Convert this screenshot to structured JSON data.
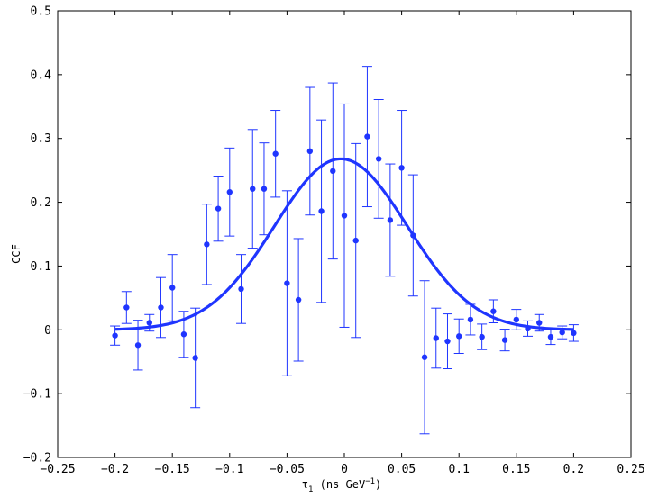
{
  "chart_data": {
    "type": "scatter",
    "xlabel": "τ",
    "xlabel_sub": "1",
    "xlabel_unit": " (ns GeV",
    "xlabel_sup": "−1",
    "xlabel_close": ")",
    "ylabel": "CCF",
    "xlim": [
      -0.25,
      0.25
    ],
    "ylim": [
      -0.2,
      0.5
    ],
    "xticks": [
      -0.25,
      -0.2,
      -0.15,
      -0.1,
      -0.05,
      0,
      0.05,
      0.1,
      0.15,
      0.2,
      0.25
    ],
    "xtick_labels": [
      "−0.25",
      "−0.2",
      "−0.15",
      "−0.1",
      "−0.05",
      "0",
      "0.05",
      "0.1",
      "0.15",
      "0.2",
      "0.25"
    ],
    "yticks": [
      -0.2,
      -0.1,
      0,
      0.1,
      0.2,
      0.3,
      0.4,
      0.5
    ],
    "ytick_labels": [
      "−0.2",
      "−0.1",
      "0",
      "0.1",
      "0.2",
      "0.3",
      "0.4",
      "0.5"
    ],
    "grid": false,
    "colors": {
      "points": "#1f35ff",
      "fit": "#1f35ff",
      "axes": "#000000"
    },
    "points": [
      {
        "x": -0.2,
        "y": -0.009,
        "err": 0.015
      },
      {
        "x": -0.19,
        "y": 0.035,
        "err": 0.025
      },
      {
        "x": -0.18,
        "y": -0.024,
        "err": 0.039
      },
      {
        "x": -0.17,
        "y": 0.011,
        "err": 0.013
      },
      {
        "x": -0.16,
        "y": 0.035,
        "err": 0.047
      },
      {
        "x": -0.15,
        "y": 0.066,
        "err": 0.052
      },
      {
        "x": -0.14,
        "y": -0.007,
        "err": 0.036
      },
      {
        "x": -0.13,
        "y": -0.044,
        "err": 0.078
      },
      {
        "x": -0.12,
        "y": 0.134,
        "err": 0.063
      },
      {
        "x": -0.11,
        "y": 0.19,
        "err": 0.051
      },
      {
        "x": -0.1,
        "y": 0.216,
        "err": 0.069
      },
      {
        "x": -0.09,
        "y": 0.064,
        "err": 0.054
      },
      {
        "x": -0.08,
        "y": 0.221,
        "err": 0.093
      },
      {
        "x": -0.07,
        "y": 0.221,
        "err": 0.072
      },
      {
        "x": -0.06,
        "y": 0.276,
        "err": 0.068
      },
      {
        "x": -0.05,
        "y": 0.073,
        "err": 0.145
      },
      {
        "x": -0.04,
        "y": 0.047,
        "err": 0.096
      },
      {
        "x": -0.03,
        "y": 0.28,
        "err": 0.1
      },
      {
        "x": -0.02,
        "y": 0.186,
        "err": 0.143
      },
      {
        "x": -0.01,
        "y": 0.249,
        "err": 0.138
      },
      {
        "x": 0.0,
        "y": 0.179,
        "err": 0.175
      },
      {
        "x": 0.01,
        "y": 0.14,
        "err": 0.152
      },
      {
        "x": 0.02,
        "y": 0.303,
        "err": 0.11
      },
      {
        "x": 0.03,
        "y": 0.268,
        "err": 0.093
      },
      {
        "x": 0.04,
        "y": 0.172,
        "err": 0.088
      },
      {
        "x": 0.05,
        "y": 0.254,
        "err": 0.09
      },
      {
        "x": 0.06,
        "y": 0.148,
        "err": 0.095
      },
      {
        "x": 0.07,
        "y": -0.043,
        "err": 0.12
      },
      {
        "x": 0.08,
        "y": -0.013,
        "err": 0.047
      },
      {
        "x": 0.09,
        "y": -0.018,
        "err": 0.043
      },
      {
        "x": 0.1,
        "y": -0.01,
        "err": 0.027
      },
      {
        "x": 0.11,
        "y": 0.016,
        "err": 0.024
      },
      {
        "x": 0.12,
        "y": -0.011,
        "err": 0.02
      },
      {
        "x": 0.13,
        "y": 0.029,
        "err": 0.018
      },
      {
        "x": 0.14,
        "y": -0.016,
        "err": 0.017
      },
      {
        "x": 0.15,
        "y": 0.016,
        "err": 0.016
      },
      {
        "x": 0.16,
        "y": 0.002,
        "err": 0.012
      },
      {
        "x": 0.17,
        "y": 0.011,
        "err": 0.013
      },
      {
        "x": 0.18,
        "y": -0.011,
        "err": 0.012
      },
      {
        "x": 0.19,
        "y": -0.004,
        "err": 0.01
      },
      {
        "x": 0.2,
        "y": -0.005,
        "err": 0.013
      }
    ],
    "fit": {
      "type": "gaussian",
      "amplitude": 0.268,
      "center": -0.003,
      "sigma": 0.058,
      "x_range": [
        -0.2,
        0.2
      ]
    }
  }
}
